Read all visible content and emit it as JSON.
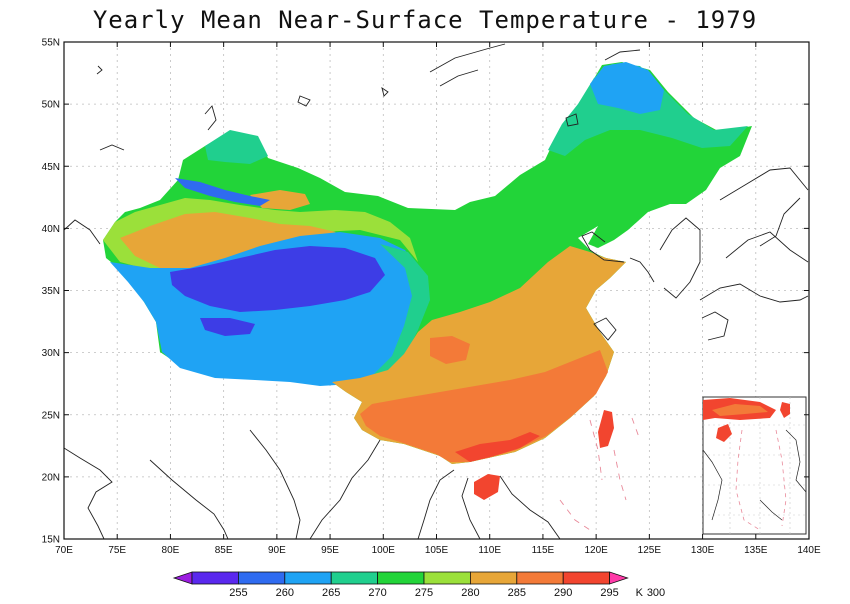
{
  "title": "Yearly Mean Near-Surface Temperature - 1979",
  "map": {
    "lon_range": [
      70,
      140
    ],
    "lat_range": [
      15,
      55
    ],
    "lon_ticks": [
      "70E",
      "75E",
      "80E",
      "85E",
      "90E",
      "95E",
      "100E",
      "105E",
      "110E",
      "115E",
      "120E",
      "125E",
      "130E",
      "135E",
      "140E"
    ],
    "lat_ticks": [
      "15N",
      "20N",
      "25N",
      "30N",
      "35N",
      "40N",
      "45N",
      "50N",
      "55N"
    ],
    "grid": true,
    "inset": "South China Sea",
    "shaded_region": "China"
  },
  "colorbar": {
    "levels": [
      "255",
      "260",
      "265",
      "270",
      "275",
      "280",
      "285",
      "290",
      "295",
      "300"
    ],
    "unit": "K",
    "colors": [
      "#9b1de0",
      "#5a28ee",
      "#2f6bf0",
      "#1fa3f4",
      "#20cf8e",
      "#22d439",
      "#9be03a",
      "#e7a638",
      "#f37a38",
      "#f2452f",
      "#ff3aa8"
    ]
  },
  "colors": {
    "very_cold": "#3d3de6",
    "cold": "#2f6bf0",
    "cool": "#1fa3f4",
    "teal": "#20cf8e",
    "green": "#22d439",
    "light_green": "#9be03a",
    "orange": "#e7a638",
    "warm": "#f37a38",
    "hot": "#f2452f"
  }
}
